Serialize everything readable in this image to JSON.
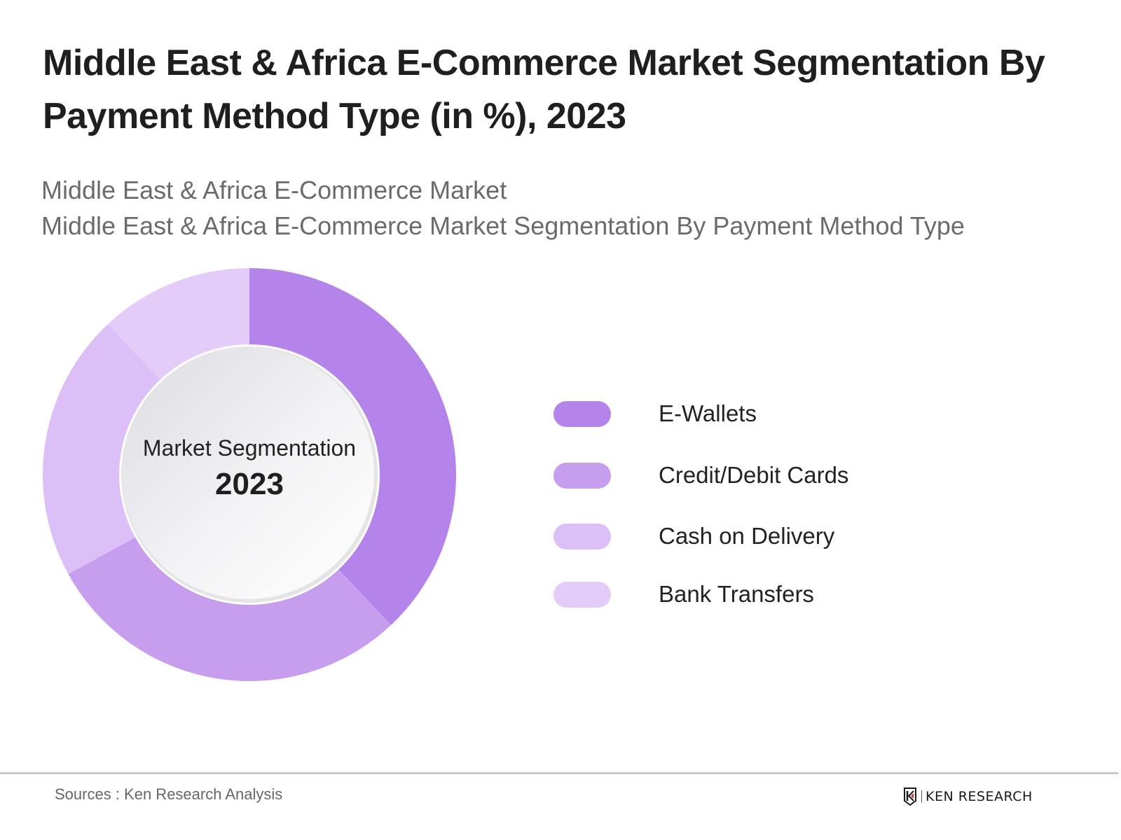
{
  "header": {
    "title_line1": "Middle East & Africa E-Commerce Market Segmentation By",
    "title_line2": "Payment Method Type (in %), 2023",
    "subtitle_line1": "Middle East & Africa E-Commerce Market",
    "subtitle_line2": "Middle East & Africa E-Commerce Market Segmentation By Payment Method Type"
  },
  "donut": {
    "center_title": "Market Segmentation",
    "center_year": "2023"
  },
  "legend": {
    "items": [
      {
        "label": "E-Wallets",
        "color": "#b584eb"
      },
      {
        "label": "Credit/Debit Cards",
        "color": "#c79dee"
      },
      {
        "label": "Cash on Delivery",
        "color": "#dbbff6"
      },
      {
        "label": "Bank Transfers",
        "color": "#e3ccf8"
      }
    ]
  },
  "footer": {
    "sources": "Sources : Ken Research Analysis",
    "logo_text": "KEN RESEARCH",
    "logo_accent": "#d0312d"
  },
  "chart_data": {
    "type": "pie",
    "variant": "donut",
    "title": "Middle East & Africa E-Commerce Market Segmentation By Payment Method Type (in %), 2023",
    "subtitle": "Middle East & Africa E-Commerce Market Segmentation By Payment Method Type",
    "center_label": [
      "Market Segmentation",
      "2023"
    ],
    "categories": [
      "E-Wallets",
      "Credit/Debit Cards",
      "Cash on Delivery",
      "Bank Transfers"
    ],
    "values": [
      38,
      29,
      21,
      12
    ],
    "unit": "%",
    "colors": [
      "#b584eb",
      "#c79dee",
      "#dbbff6",
      "#e3ccf8"
    ],
    "start_angle": "top (12 o'clock)",
    "direction": "clockwise",
    "legend_position": "right",
    "data_labels": false
  }
}
